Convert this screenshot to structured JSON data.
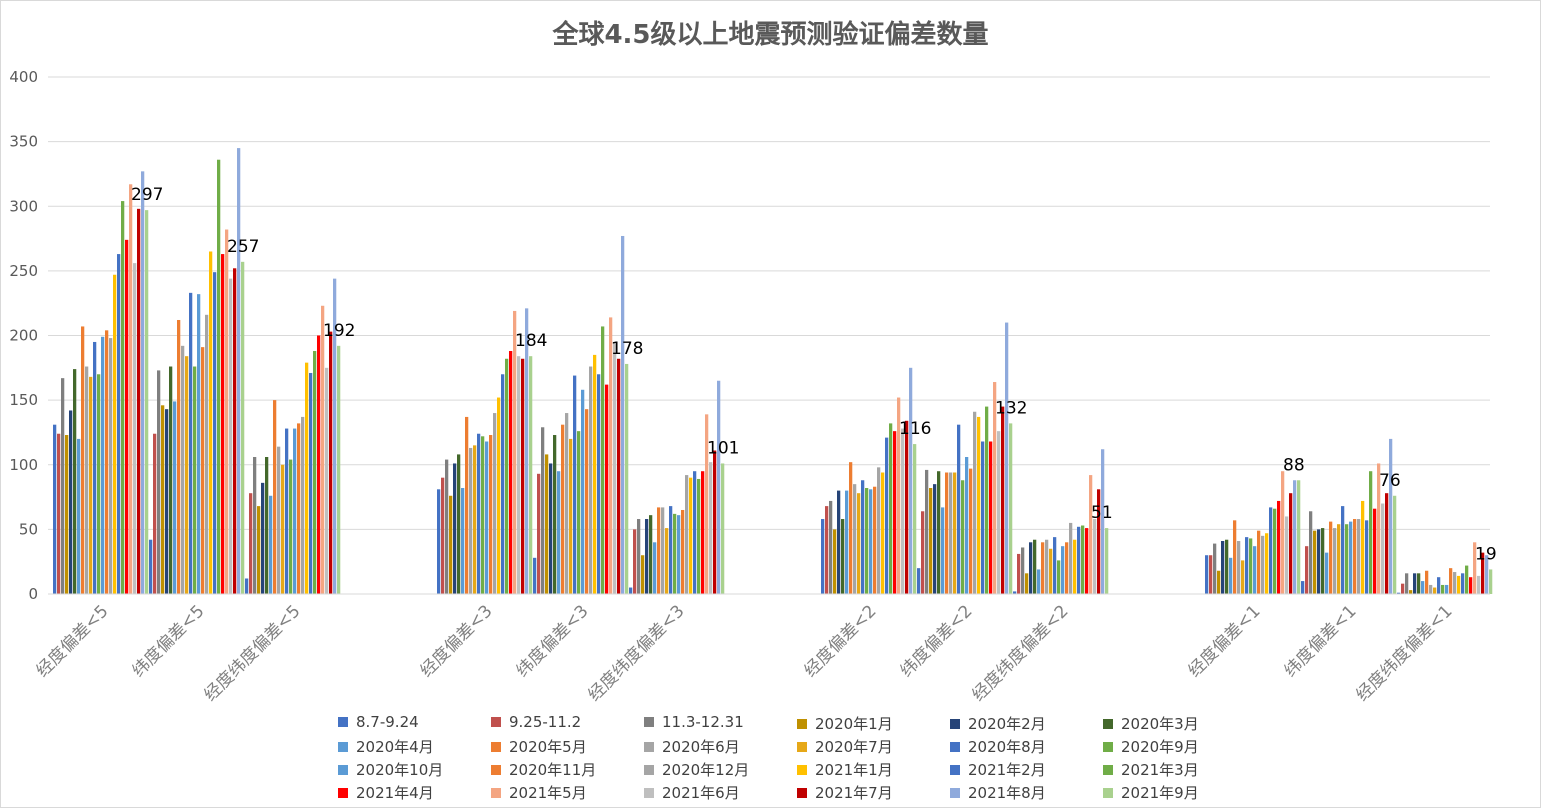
{
  "chart_data": {
    "type": "bar",
    "title": "全球4.5级以上地震预测验证偏差数量",
    "xlabel": "",
    "ylabel": "",
    "ylim": [
      0,
      400
    ],
    "yticks": [
      0,
      50,
      100,
      150,
      200,
      250,
      300,
      350,
      400
    ],
    "grid": true,
    "legend_position": "bottom",
    "categories": [
      "经度偏差<5",
      "纬度偏差<5",
      "经度纬度偏差<5",
      "经度偏差<3",
      "纬度偏差<3",
      "经度纬度偏差<3",
      "经度偏差<2",
      "纬度偏差<2",
      "经度纬度偏差<2",
      "经度偏差<1",
      "纬度偏差<1",
      "经度纬度偏差<1"
    ],
    "series": [
      {
        "name": "8.7-9.24",
        "color": "#4472c4",
        "values": [
          131,
          42,
          12,
          81,
          28,
          5,
          58,
          20,
          2,
          30,
          10,
          1
        ]
      },
      {
        "name": "9.25-11.2",
        "color": "#c0504d",
        "values": [
          124,
          124,
          78,
          90,
          93,
          50,
          68,
          64,
          31,
          30,
          37,
          8
        ]
      },
      {
        "name": "11.3-12.31",
        "color": "#7f7f7f",
        "values": [
          167,
          173,
          106,
          104,
          129,
          58,
          72,
          96,
          36,
          39,
          64,
          16
        ]
      },
      {
        "name": "2020年1月",
        "color": "#bf9000",
        "values": [
          123,
          146,
          68,
          76,
          108,
          30,
          50,
          82,
          16,
          18,
          49,
          3
        ]
      },
      {
        "name": "2020年2月",
        "color": "#264478",
        "values": [
          142,
          143,
          86,
          101,
          101,
          58,
          80,
          85,
          40,
          41,
          50,
          16
        ]
      },
      {
        "name": "2020年3月",
        "color": "#43682b",
        "values": [
          174,
          176,
          106,
          108,
          123,
          61,
          58,
          95,
          42,
          42,
          51,
          16
        ]
      },
      {
        "name": "2020年4月",
        "color": "#5b9bd5",
        "values": [
          120,
          149,
          76,
          82,
          95,
          40,
          80,
          67,
          19,
          28,
          32,
          10
        ]
      },
      {
        "name": "2020年5月",
        "color": "#ed7d31",
        "values": [
          207,
          212,
          150,
          137,
          131,
          67,
          102,
          94,
          40,
          57,
          56,
          18
        ]
      },
      {
        "name": "2020年6月",
        "color": "#a5a5a5",
        "values": [
          176,
          192,
          114,
          113,
          140,
          67,
          85,
          94,
          42,
          41,
          51,
          7
        ]
      },
      {
        "name": "2020年7月",
        "color": "#e6a818",
        "values": [
          168,
          184,
          100,
          115,
          120,
          51,
          78,
          94,
          35,
          26,
          54,
          5
        ]
      },
      {
        "name": "2020年8月",
        "color": "#4472c4",
        "values": [
          195,
          233,
          128,
          124,
          169,
          68,
          88,
          131,
          44,
          44,
          68,
          13
        ]
      },
      {
        "name": "2020年9月",
        "color": "#70ad47",
        "values": [
          170,
          176,
          104,
          122,
          126,
          62,
          82,
          88,
          26,
          43,
          54,
          7
        ]
      },
      {
        "name": "2020年10月",
        "color": "#5b9bd5",
        "values": [
          199,
          232,
          128,
          118,
          158,
          61,
          81,
          106,
          37,
          37,
          56,
          7
        ]
      },
      {
        "name": "2020年11月",
        "color": "#ed7d31",
        "values": [
          204,
          191,
          132,
          123,
          143,
          65,
          83,
          97,
          40,
          49,
          58,
          20
        ]
      },
      {
        "name": "2020年12月",
        "color": "#a5a5a5",
        "values": [
          198,
          216,
          137,
          140,
          176,
          92,
          98,
          141,
          55,
          45,
          58,
          17
        ]
      },
      {
        "name": "2021年1月",
        "color": "#ffc000",
        "values": [
          247,
          265,
          179,
          152,
          185,
          90,
          94,
          137,
          42,
          47,
          72,
          14
        ]
      },
      {
        "name": "2021年2月",
        "color": "#4472c4",
        "values": [
          263,
          249,
          171,
          170,
          170,
          95,
          121,
          118,
          52,
          67,
          57,
          16
        ]
      },
      {
        "name": "2021年3月",
        "color": "#70ad47",
        "values": [
          304,
          336,
          188,
          182,
          207,
          89,
          132,
          145,
          53,
          66,
          95,
          22
        ]
      },
      {
        "name": "2021年4月",
        "color": "#ff0000",
        "values": [
          274,
          263,
          200,
          188,
          162,
          95,
          126,
          118,
          51,
          72,
          66,
          13
        ]
      },
      {
        "name": "2021年5月",
        "color": "#f4a582",
        "values": [
          317,
          282,
          223,
          219,
          214,
          139,
          152,
          164,
          92,
          95,
          101,
          40
        ]
      },
      {
        "name": "2021年6月",
        "color": "#bfbfbf",
        "values": [
          256,
          244,
          175,
          184,
          194,
          102,
          128,
          126,
          58,
          60,
          70,
          14
        ]
      },
      {
        "name": "2021年7月",
        "color": "#c00000",
        "values": [
          298,
          252,
          203,
          182,
          182,
          111,
          134,
          145,
          81,
          78,
          78,
          32
        ]
      },
      {
        "name": "2021年8月",
        "color": "#8faadc",
        "values": [
          327,
          345,
          244,
          221,
          277,
          165,
          175,
          210,
          112,
          88,
          120,
          30
        ]
      },
      {
        "name": "2021年9月",
        "color": "#a9d18e",
        "values": [
          297,
          257,
          192,
          184,
          178,
          101,
          116,
          132,
          51,
          88,
          76,
          19
        ]
      }
    ],
    "data_labels": [
      {
        "category_index": 0,
        "text": "297"
      },
      {
        "category_index": 1,
        "text": "257"
      },
      {
        "category_index": 2,
        "text": "192"
      },
      {
        "category_index": 3,
        "text": "184"
      },
      {
        "category_index": 4,
        "text": "178"
      },
      {
        "category_index": 5,
        "text": "101"
      },
      {
        "category_index": 6,
        "text": "116"
      },
      {
        "category_index": 7,
        "text": "132"
      },
      {
        "category_index": 8,
        "text": "51"
      },
      {
        "category_index": 9,
        "text": "88"
      },
      {
        "category_index": 10,
        "text": "76"
      },
      {
        "category_index": 11,
        "text": "19"
      }
    ]
  }
}
